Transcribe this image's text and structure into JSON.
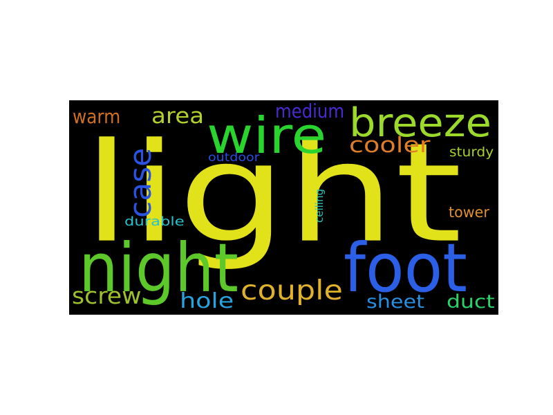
{
  "figure": {
    "background_color": "#000000",
    "page_background_color": "#ffffff"
  },
  "words": [
    {
      "id": "light",
      "text": "light",
      "color": "#e2e21b"
    },
    {
      "id": "night",
      "text": "night",
      "color": "#5cc82a"
    },
    {
      "id": "foot",
      "text": "foot",
      "color": "#2a5fe6"
    },
    {
      "id": "wire",
      "text": "wire",
      "color": "#29d42e"
    },
    {
      "id": "breeze",
      "text": "breeze",
      "color": "#9bd92b"
    },
    {
      "id": "case",
      "text": "case",
      "color": "#2953e0"
    },
    {
      "id": "couple",
      "text": "couple",
      "color": "#e0b12a"
    },
    {
      "id": "cooler",
      "text": "cooler",
      "color": "#e07e27"
    },
    {
      "id": "medium",
      "text": "medium",
      "color": "#4a2ad0"
    },
    {
      "id": "area",
      "text": "area",
      "color": "#b3d12d"
    },
    {
      "id": "warm",
      "text": "warm",
      "color": "#d06f23"
    },
    {
      "id": "screw",
      "text": "screw",
      "color": "#9ec02a"
    },
    {
      "id": "hole",
      "text": "hole",
      "color": "#27a4e0"
    },
    {
      "id": "sheet",
      "text": "sheet",
      "color": "#2790e0"
    },
    {
      "id": "duct",
      "text": "duct",
      "color": "#27d46a"
    },
    {
      "id": "tower",
      "text": "tower",
      "color": "#e0912a"
    },
    {
      "id": "sturdy",
      "text": "sturdy",
      "color": "#a9d12a"
    },
    {
      "id": "outdoor",
      "text": "outdoor",
      "color": "#2a4fe0"
    },
    {
      "id": "durable",
      "text": "durable",
      "color": "#27c2cf"
    },
    {
      "id": "ceiling",
      "text": "ceiling",
      "color": "#27c2b5"
    }
  ]
}
